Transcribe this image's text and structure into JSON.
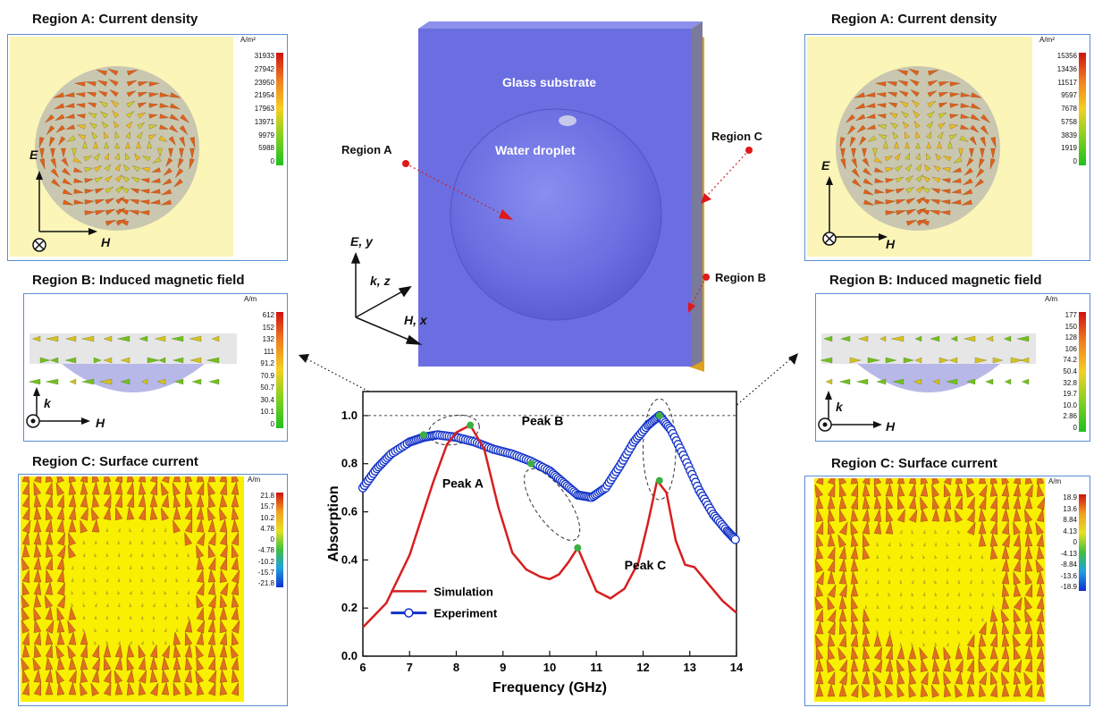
{
  "left": {
    "a_title": "Region A: Current density",
    "a_unit": "A/m²",
    "a_scale": [
      "31933",
      "27942",
      "23950",
      "21954",
      "17963",
      "13971",
      "9979",
      "5988",
      "0"
    ],
    "b_title": "Region B: Induced magnetic field",
    "b_unit": "A/m",
    "b_scale": [
      "612",
      "152",
      "132",
      "111",
      "91.2",
      "70.9",
      "50.7",
      "30.4",
      "10.1",
      "0"
    ],
    "c_title": "Region C: Surface current",
    "c_unit": "A/m",
    "c_scale": [
      "21.8",
      "15.7",
      "10.2",
      "4.78",
      "0",
      "-4.78",
      "-10.2",
      "-15.7",
      "-21.8"
    ]
  },
  "right": {
    "a_title": "Region A: Current density",
    "a_unit": "A/m²",
    "a_scale": [
      "15356",
      "13436",
      "11517",
      "9597",
      "7678",
      "5758",
      "3839",
      "1919",
      "0"
    ],
    "b_title": "Region B: Induced magnetic field",
    "b_unit": "A/m",
    "b_scale": [
      "177",
      "150",
      "128",
      "106",
      "74.2",
      "50.4",
      "32.8",
      "19.7",
      "10.0",
      "2.86",
      "0"
    ],
    "c_title": "Region C: Surface current",
    "c_unit": "A/m",
    "c_scale": [
      "18.9",
      "13.6",
      "8.84",
      "4.13",
      "0",
      "-4.13",
      "-8.84",
      "-13.6",
      "-18.9"
    ]
  },
  "axes": {
    "e": "E",
    "h": "H",
    "k": "k"
  },
  "center": {
    "glass": "Glass substrate",
    "water": "Water droplet",
    "region_a": "Region A",
    "region_b": "Region B",
    "region_c": "Region C",
    "axis_ey": "E, y",
    "axis_kz": "k, z",
    "axis_hx": "H, x"
  },
  "colors": {
    "panel_border": "#5a8fd0",
    "slab": "#6a6ee0",
    "simulation": "#d81e1e",
    "experiment": "#1030c8",
    "peak_dot": "#3cb043"
  },
  "chart_data": {
    "type": "line",
    "xlabel": "Frequency (GHz)",
    "ylabel": "Absorption",
    "xlim": [
      6,
      14
    ],
    "ylim": [
      0,
      1.1
    ],
    "xticks": [
      6,
      7,
      8,
      9,
      10,
      11,
      12,
      13,
      14
    ],
    "yticks": [
      0.0,
      0.2,
      0.4,
      0.6,
      0.8,
      1.0
    ],
    "xtick_labels": [
      "6",
      "7",
      "8",
      "9",
      "10",
      "11",
      "12",
      "13",
      "14"
    ],
    "ytick_labels": [
      "0.0",
      "0.2",
      "0.4",
      "0.6",
      "0.8",
      "1.0"
    ],
    "reference_line": 1.0,
    "series": [
      {
        "name": "Simulation",
        "x": [
          6,
          6.5,
          7,
          7.5,
          7.8,
          8,
          8.3,
          8.6,
          8.9,
          9.2,
          9.5,
          9.8,
          10,
          10.2,
          10.4,
          10.6,
          10.8,
          11,
          11.3,
          11.6,
          11.9,
          12.1,
          12.3,
          12.5,
          12.7,
          12.9,
          13.1,
          13.4,
          13.7,
          14
        ],
        "y": [
          0.12,
          0.22,
          0.42,
          0.72,
          0.88,
          0.93,
          0.96,
          0.86,
          0.62,
          0.43,
          0.36,
          0.33,
          0.32,
          0.34,
          0.39,
          0.45,
          0.36,
          0.27,
          0.24,
          0.28,
          0.39,
          0.55,
          0.73,
          0.68,
          0.48,
          0.38,
          0.37,
          0.3,
          0.23,
          0.18
        ]
      },
      {
        "name": "Experiment",
        "x": [
          6,
          6.3,
          6.6,
          7,
          7.3,
          7.6,
          8,
          8.4,
          8.8,
          9.2,
          9.6,
          10,
          10.3,
          10.6,
          10.9,
          11.2,
          11.5,
          11.8,
          12.1,
          12.35,
          12.6,
          12.9,
          13.2,
          13.5,
          13.8,
          14
        ],
        "y": [
          0.7,
          0.78,
          0.84,
          0.89,
          0.91,
          0.92,
          0.91,
          0.89,
          0.86,
          0.84,
          0.81,
          0.77,
          0.72,
          0.67,
          0.66,
          0.7,
          0.79,
          0.89,
          0.96,
          1.0,
          0.94,
          0.82,
          0.69,
          0.59,
          0.52,
          0.48
        ]
      }
    ],
    "peak_points": [
      {
        "x": 7.3,
        "y": 0.92
      },
      {
        "x": 8.3,
        "y": 0.96
      },
      {
        "x": 9.6,
        "y": 0.8
      },
      {
        "x": 10.6,
        "y": 0.45
      },
      {
        "x": 12.35,
        "y": 1.0
      },
      {
        "x": 12.35,
        "y": 0.73
      }
    ],
    "annotations": [
      {
        "text": "Peak A",
        "x": 7.7,
        "y": 0.7
      },
      {
        "text": "Peak B",
        "x": 9.4,
        "y": 0.96
      },
      {
        "text": "Peak C",
        "x": 11.6,
        "y": 0.36
      }
    ]
  }
}
